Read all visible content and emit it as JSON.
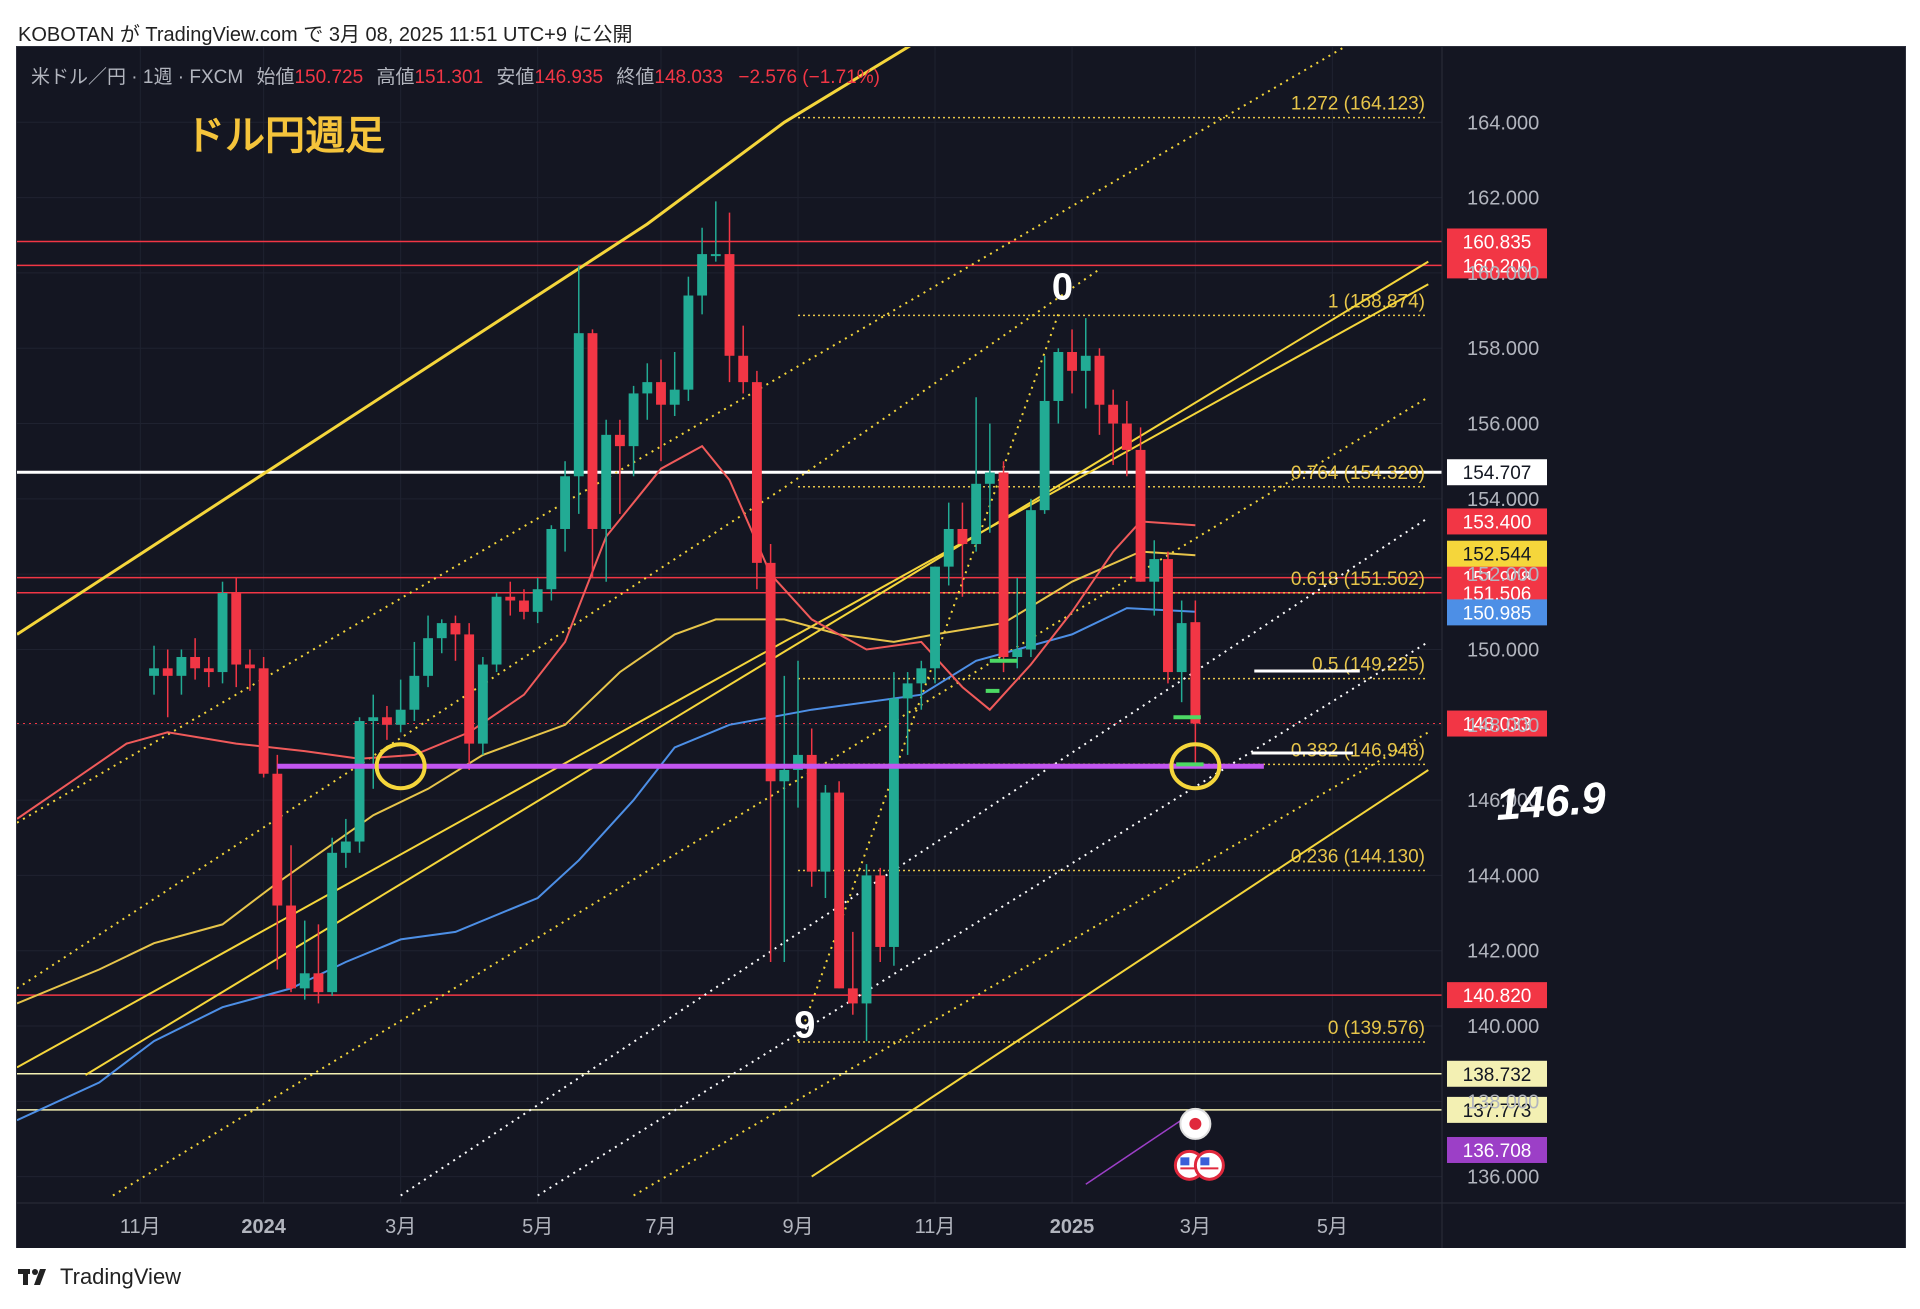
{
  "header": {
    "publisher_line": "KOBOTAN が TradingView.com で 3月 08, 2025 11:51 UTC+9 に公開"
  },
  "legend": {
    "symbol": "米ドル／円 · 1週 · FXCM",
    "open_label": "始値",
    "open": "150.725",
    "high_label": "高値",
    "high": "151.301",
    "low_label": "安値",
    "low": "146.935",
    "close_label": "終値",
    "close": "148.033",
    "change": "−2.576 (−1.71%)"
  },
  "annotations": {
    "title": "ドル円週足",
    "handwritten_value": "146.9"
  },
  "footer": {
    "brand": "TradingView"
  },
  "colors": {
    "background": "#141622",
    "up": "#22ab94",
    "down": "#f23645",
    "white_line": "#ffffff",
    "purple_line": "#c255f0",
    "yellow": "#f5d63b",
    "pale_yellow": "#f3f0b3",
    "blue_ma": "#4d8fe6",
    "red_ma": "#f05a5a",
    "yellow_ma": "#e7c54a",
    "green_marker": "#4cd964"
  },
  "chart_data": {
    "type": "candlestick",
    "symbol": "USDJPY",
    "timeframe": "1W",
    "y_axis": {
      "range": [
        135.3,
        166.0
      ],
      "ticks": [
        "164.000",
        "162.000",
        "160.000",
        "158.000",
        "156.000",
        "154.000",
        "152.000",
        "150.000",
        "148.000",
        "146.000",
        "144.000",
        "142.000",
        "140.000",
        "138.000",
        "136.000"
      ]
    },
    "x_axis": {
      "range_weeks": [
        -60,
        44
      ],
      "ticks": [
        {
          "label": "11月",
          "week": -51,
          "bold": false
        },
        {
          "label": "2024",
          "week": -42,
          "bold": true
        },
        {
          "label": "3月",
          "week": -32,
          "bold": false
        },
        {
          "label": "5月",
          "week": -22,
          "bold": false
        },
        {
          "label": "7月",
          "week": -13,
          "bold": false
        },
        {
          "label": "9月",
          "week": -3,
          "bold": false
        },
        {
          "label": "11月",
          "week": 7,
          "bold": false
        },
        {
          "label": "2025",
          "week": 17,
          "bold": true
        },
        {
          "label": "3月",
          "week": 26,
          "bold": false
        },
        {
          "label": "5月",
          "week": 36,
          "bold": false
        }
      ]
    },
    "candles": [
      {
        "o": 149.3,
        "h": 150.1,
        "l": 148.8,
        "c": 149.5
      },
      {
        "o": 149.5,
        "h": 150.0,
        "l": 148.2,
        "c": 149.3
      },
      {
        "o": 149.3,
        "h": 150.0,
        "l": 148.8,
        "c": 149.8
      },
      {
        "o": 149.8,
        "h": 150.3,
        "l": 149.2,
        "c": 149.5
      },
      {
        "o": 149.5,
        "h": 149.8,
        "l": 149.0,
        "c": 149.4
      },
      {
        "o": 149.4,
        "h": 151.8,
        "l": 149.1,
        "c": 151.5
      },
      {
        "o": 151.5,
        "h": 151.9,
        "l": 149.0,
        "c": 149.6
      },
      {
        "o": 149.6,
        "h": 150.0,
        "l": 148.9,
        "c": 149.5
      },
      {
        "o": 149.5,
        "h": 149.8,
        "l": 146.6,
        "c": 146.7
      },
      {
        "o": 146.7,
        "h": 147.2,
        "l": 141.5,
        "c": 143.2
      },
      {
        "o": 143.2,
        "h": 144.8,
        "l": 140.9,
        "c": 141.0
      },
      {
        "o": 141.0,
        "h": 142.8,
        "l": 140.7,
        "c": 141.4
      },
      {
        "o": 141.4,
        "h": 142.7,
        "l": 140.6,
        "c": 140.9
      },
      {
        "o": 140.9,
        "h": 145.0,
        "l": 140.8,
        "c": 144.6
      },
      {
        "o": 144.6,
        "h": 145.5,
        "l": 144.2,
        "c": 144.9
      },
      {
        "o": 144.9,
        "h": 148.2,
        "l": 144.6,
        "c": 148.1
      },
      {
        "o": 148.1,
        "h": 148.8,
        "l": 146.3,
        "c": 148.2
      },
      {
        "o": 148.2,
        "h": 148.5,
        "l": 147.6,
        "c": 148.0
      },
      {
        "o": 148.0,
        "h": 149.2,
        "l": 147.8,
        "c": 148.4
      },
      {
        "o": 148.4,
        "h": 150.2,
        "l": 148.1,
        "c": 149.3
      },
      {
        "o": 149.3,
        "h": 150.9,
        "l": 149.0,
        "c": 150.3
      },
      {
        "o": 150.3,
        "h": 150.8,
        "l": 149.9,
        "c": 150.7
      },
      {
        "o": 150.7,
        "h": 150.9,
        "l": 149.7,
        "c": 150.4
      },
      {
        "o": 150.4,
        "h": 150.7,
        "l": 146.8,
        "c": 147.5
      },
      {
        "o": 147.5,
        "h": 149.8,
        "l": 147.2,
        "c": 149.6
      },
      {
        "o": 149.6,
        "h": 151.5,
        "l": 149.4,
        "c": 151.4
      },
      {
        "o": 151.4,
        "h": 151.8,
        "l": 150.9,
        "c": 151.3
      },
      {
        "o": 151.3,
        "h": 151.6,
        "l": 150.8,
        "c": 151.0
      },
      {
        "o": 151.0,
        "h": 151.9,
        "l": 150.7,
        "c": 151.6
      },
      {
        "o": 151.6,
        "h": 153.3,
        "l": 151.3,
        "c": 153.2
      },
      {
        "o": 153.2,
        "h": 155.0,
        "l": 152.6,
        "c": 154.6
      },
      {
        "o": 154.6,
        "h": 160.2,
        "l": 153.6,
        "c": 158.4
      },
      {
        "o": 158.4,
        "h": 158.5,
        "l": 151.9,
        "c": 153.2
      },
      {
        "o": 153.2,
        "h": 156.1,
        "l": 151.8,
        "c": 155.7
      },
      {
        "o": 155.7,
        "h": 156.1,
        "l": 153.6,
        "c": 155.4
      },
      {
        "o": 155.4,
        "h": 157.0,
        "l": 154.6,
        "c": 156.8
      },
      {
        "o": 156.8,
        "h": 157.6,
        "l": 156.1,
        "c": 157.1
      },
      {
        "o": 157.1,
        "h": 157.7,
        "l": 155.0,
        "c": 156.5
      },
      {
        "o": 156.5,
        "h": 157.9,
        "l": 156.2,
        "c": 156.9
      },
      {
        "o": 156.9,
        "h": 159.9,
        "l": 156.6,
        "c": 159.4
      },
      {
        "o": 159.4,
        "h": 161.2,
        "l": 158.9,
        "c": 160.5
      },
      {
        "o": 160.5,
        "h": 161.9,
        "l": 160.3,
        "c": 160.5
      },
      {
        "o": 160.5,
        "h": 161.6,
        "l": 157.1,
        "c": 157.8
      },
      {
        "o": 157.8,
        "h": 158.6,
        "l": 156.8,
        "c": 157.1
      },
      {
        "o": 157.1,
        "h": 157.4,
        "l": 151.6,
        "c": 152.3
      },
      {
        "o": 152.3,
        "h": 152.8,
        "l": 141.7,
        "c": 146.5
      },
      {
        "o": 146.5,
        "h": 149.3,
        "l": 141.7,
        "c": 146.8
      },
      {
        "o": 146.8,
        "h": 149.7,
        "l": 145.8,
        "c": 147.2
      },
      {
        "o": 147.2,
        "h": 147.9,
        "l": 143.7,
        "c": 144.1
      },
      {
        "o": 144.1,
        "h": 146.4,
        "l": 143.4,
        "c": 146.2
      },
      {
        "o": 146.2,
        "h": 146.5,
        "l": 141.0,
        "c": 141.0
      },
      {
        "o": 141.0,
        "h": 142.5,
        "l": 140.3,
        "c": 140.6
      },
      {
        "o": 140.6,
        "h": 144.3,
        "l": 139.6,
        "c": 144.0
      },
      {
        "o": 144.0,
        "h": 144.2,
        "l": 141.7,
        "c": 142.1
      },
      {
        "o": 142.1,
        "h": 149.4,
        "l": 141.6,
        "c": 148.7
      },
      {
        "o": 148.7,
        "h": 149.4,
        "l": 147.2,
        "c": 149.1
      },
      {
        "o": 149.1,
        "h": 149.7,
        "l": 148.4,
        "c": 149.5
      },
      {
        "o": 149.5,
        "h": 152.2,
        "l": 149.1,
        "c": 152.2
      },
      {
        "o": 152.2,
        "h": 153.9,
        "l": 151.7,
        "c": 153.2
      },
      {
        "o": 153.2,
        "h": 153.9,
        "l": 151.4,
        "c": 152.8
      },
      {
        "o": 152.8,
        "h": 156.7,
        "l": 152.6,
        "c": 154.4
      },
      {
        "o": 154.4,
        "h": 156.0,
        "l": 153.1,
        "c": 154.7
      },
      {
        "o": 154.7,
        "h": 155.0,
        "l": 149.4,
        "c": 149.8
      },
      {
        "o": 149.8,
        "h": 151.9,
        "l": 149.5,
        "c": 150.0
      },
      {
        "o": 150.0,
        "h": 154.0,
        "l": 149.8,
        "c": 153.7
      },
      {
        "o": 153.7,
        "h": 157.8,
        "l": 153.6,
        "c": 156.6
      },
      {
        "o": 156.6,
        "h": 158.0,
        "l": 156.0,
        "c": 157.9
      },
      {
        "o": 157.9,
        "h": 158.5,
        "l": 156.8,
        "c": 157.4
      },
      {
        "o": 157.4,
        "h": 158.8,
        "l": 156.4,
        "c": 157.8
      },
      {
        "o": 157.8,
        "h": 158.0,
        "l": 155.7,
        "c": 156.5
      },
      {
        "o": 156.5,
        "h": 156.9,
        "l": 154.9,
        "c": 156.0
      },
      {
        "o": 156.0,
        "h": 156.6,
        "l": 154.6,
        "c": 155.3
      },
      {
        "o": 155.3,
        "h": 155.9,
        "l": 151.8,
        "c": 151.8
      },
      {
        "o": 151.8,
        "h": 152.9,
        "l": 150.9,
        "c": 152.4
      },
      {
        "o": 152.4,
        "h": 152.6,
        "l": 149.1,
        "c": 149.4
      },
      {
        "o": 149.4,
        "h": 151.3,
        "l": 148.6,
        "c": 150.7
      },
      {
        "o": 150.725,
        "h": 151.301,
        "l": 146.935,
        "c": 148.033
      }
    ],
    "ma_blue": [
      [
        -60,
        137.5
      ],
      [
        -54,
        138.5
      ],
      [
        -50,
        139.6
      ],
      [
        -45,
        140.5
      ],
      [
        -40,
        141.0
      ],
      [
        -36,
        141.7
      ],
      [
        -32,
        142.3
      ],
      [
        -28,
        142.5
      ],
      [
        -22,
        143.4
      ],
      [
        -19,
        144.4
      ],
      [
        -15,
        146.0
      ],
      [
        -12,
        147.4
      ],
      [
        -8,
        148.0
      ],
      [
        -2,
        148.4
      ],
      [
        6,
        148.8
      ],
      [
        10,
        149.7
      ],
      [
        17,
        150.4
      ],
      [
        21,
        151.1
      ],
      [
        26,
        151.0
      ]
    ],
    "ma_yellow": [
      [
        -60,
        140.6
      ],
      [
        -54,
        141.5
      ],
      [
        -50,
        142.2
      ],
      [
        -45,
        142.7
      ],
      [
        -41,
        143.8
      ],
      [
        -34,
        145.6
      ],
      [
        -30,
        146.3
      ],
      [
        -26,
        147.2
      ],
      [
        -20,
        148.0
      ],
      [
        -16,
        149.4
      ],
      [
        -12,
        150.4
      ],
      [
        -9,
        150.8
      ],
      [
        -4,
        150.8
      ],
      [
        0,
        150.4
      ],
      [
        4,
        150.2
      ],
      [
        7,
        150.4
      ],
      [
        12,
        150.7
      ],
      [
        17,
        151.8
      ],
      [
        22,
        152.6
      ],
      [
        26,
        152.5
      ]
    ],
    "ma_red": [
      [
        -60,
        145.5
      ],
      [
        -56,
        146.5
      ],
      [
        -52,
        147.5
      ],
      [
        -49,
        147.8
      ],
      [
        -44,
        147.5
      ],
      [
        -39,
        147.3
      ],
      [
        -35,
        147.1
      ],
      [
        -31,
        147.2
      ],
      [
        -27,
        147.8
      ],
      [
        -23,
        148.8
      ],
      [
        -20,
        150.2
      ],
      [
        -17,
        153.0
      ],
      [
        -13,
        154.8
      ],
      [
        -10,
        155.4
      ],
      [
        -8,
        154.5
      ],
      [
        -5,
        152.0
      ],
      [
        -2,
        150.8
      ],
      [
        2,
        150.0
      ],
      [
        6,
        150.2
      ],
      [
        9,
        149.0
      ],
      [
        11,
        148.4
      ],
      [
        14,
        149.6
      ],
      [
        17,
        151.0
      ],
      [
        20,
        152.6
      ],
      [
        22,
        153.4
      ],
      [
        26,
        153.3
      ]
    ],
    "horizontal_lines": [
      {
        "price": 160.835,
        "label": "160.835",
        "color": "#f23645",
        "label_bg": "#f23645",
        "label_fg": "#ffffff"
      },
      {
        "price": 160.2,
        "label": "160.200",
        "color": "#f23645",
        "label_bg": "#f23645",
        "label_fg": "#ffffff"
      },
      {
        "price": 154.707,
        "label": "154.707",
        "color": "#ffffff",
        "label_bg": "#ffffff",
        "label_fg": "#131722"
      },
      {
        "price": 151.908,
        "label": "151.908",
        "color": "#f23645",
        "label_bg": "#f23645",
        "label_fg": "#ffffff"
      },
      {
        "price": 151.506,
        "label": "151.506",
        "color": "#f23645",
        "label_bg": "#f23645",
        "label_fg": "#ffffff"
      },
      {
        "price": 140.82,
        "label": "140.820",
        "color": "#f23645",
        "label_bg": "#f23645",
        "label_fg": "#ffffff"
      },
      {
        "price": 138.732,
        "label": "138.732",
        "color": "#f3f0b3",
        "label_bg": "#f3f0b3",
        "label_fg": "#131722"
      },
      {
        "price": 137.773,
        "label": "137.773",
        "color": "#f3f0b3",
        "label_bg": "#f3f0b3",
        "label_fg": "#131722"
      }
    ],
    "price_labels": [
      {
        "price": 153.4,
        "label": "153.400",
        "bg": "#f23645",
        "fg": "#ffffff"
      },
      {
        "price": 152.544,
        "label": "152.544",
        "bg": "#f5d63b",
        "fg": "#131722"
      },
      {
        "price": 150.985,
        "label": "150.985",
        "bg": "#4d8fe6",
        "fg": "#ffffff"
      },
      {
        "price": 148.033,
        "label": "148.033",
        "bg": "#f23645",
        "fg": "#ffffff"
      },
      {
        "price": 136.708,
        "label": "136.708",
        "bg": "#9c3fc7",
        "fg": "#ffffff"
      }
    ],
    "fibonacci": [
      {
        "price": 164.123,
        "label": "1.272 (164.123)"
      },
      {
        "price": 158.874,
        "label": "1 (158.874)"
      },
      {
        "price": 154.32,
        "label": "0.764 (154.320)"
      },
      {
        "price": 151.502,
        "label": "0.618 (151.502)"
      },
      {
        "price": 149.225,
        "label": "0.5 (149.225)"
      },
      {
        "price": 146.948,
        "label": "0.382 (146.948)"
      },
      {
        "price": 144.13,
        "label": "0.236 (144.130)"
      },
      {
        "price": 139.576,
        "label": "0 (139.576)"
      }
    ],
    "purple_support": {
      "price": 146.9,
      "from_week": -41,
      "to_week": 31
    },
    "channel_lines": [
      {
        "style": "solid",
        "width": 3,
        "color": "#f5d63b",
        "points": [
          [
            -60,
            150.4
          ],
          [
            -14,
            161.3
          ],
          [
            -4,
            164.0
          ],
          [
            24,
            170.2
          ]
        ]
      },
      {
        "style": "solid",
        "width": 2,
        "color": "#f5d63b",
        "points": [
          [
            -60,
            138.9
          ],
          [
            43,
            159.7
          ]
        ]
      },
      {
        "style": "solid",
        "width": 2,
        "color": "#f5d63b",
        "points": [
          [
            -55,
            138.7
          ],
          [
            43,
            160.3
          ]
        ]
      },
      {
        "style": "solid",
        "width": 2,
        "color": "#f5d63b",
        "points": [
          [
            -2,
            136.0
          ],
          [
            43,
            146.8
          ]
        ]
      },
      {
        "style": "dotted",
        "width": 2,
        "color": "#f5d63b",
        "points": [
          [
            -60,
            145.4
          ],
          [
            43,
            167.3
          ]
        ]
      },
      {
        "style": "dotted",
        "width": 2,
        "color": "#f5d63b",
        "points": [
          [
            -53,
            135.5
          ],
          [
            43,
            156.7
          ]
        ]
      },
      {
        "style": "dotted",
        "width": 2,
        "color": "#f5d63b",
        "points": [
          [
            -60,
            141.0
          ],
          [
            -4,
            154.3
          ],
          [
            19,
            160.1
          ]
        ]
      },
      {
        "style": "dotted",
        "width": 2,
        "color": "#f5d63b",
        "points": [
          [
            -15,
            135.5
          ],
          [
            43,
            147.8
          ]
        ]
      },
      {
        "style": "dotted",
        "width": 2,
        "color": "#f5d63b",
        "points": [
          [
            -3,
            139.6
          ],
          [
            16,
            158.9
          ]
        ]
      },
      {
        "style": "dotted",
        "width": 2,
        "color": "#ffffff",
        "points": [
          [
            -32,
            135.5
          ],
          [
            43,
            153.5
          ]
        ]
      },
      {
        "style": "dotted",
        "width": 2,
        "color": "#ffffff",
        "points": [
          [
            -22,
            135.5
          ],
          [
            43,
            150.2
          ]
        ]
      }
    ],
    "green_markers": [
      [
        11,
        13,
        149.7
      ],
      [
        10.7,
        11.7,
        148.9
      ],
      [
        24.4,
        26.4,
        148.2
      ],
      [
        24.6,
        26.6,
        146.95
      ]
    ],
    "highlight_circles": [
      [
        -32,
        146.9
      ],
      [
        26,
        146.9
      ]
    ],
    "marker_digits": [
      {
        "text": "0",
        "week": 16.3,
        "price": 159.3
      },
      {
        "text": "9",
        "week": -2.5,
        "price": 139.7
      }
    ],
    "white_underlines": [
      {
        "price": 149.43,
        "from_week": 30.3,
        "to_week": 38.0
      },
      {
        "price": 147.25,
        "from_week": 30.1,
        "to_week": 37.5
      }
    ],
    "purple_thin_line": [
      [
        18,
        135.8
      ],
      [
        25.8,
        137.7
      ]
    ],
    "events": [
      {
        "type": "jp-flag",
        "week": 26,
        "price": 137.4
      },
      {
        "type": "us-flag",
        "week": 26,
        "price": 136.3
      }
    ]
  }
}
